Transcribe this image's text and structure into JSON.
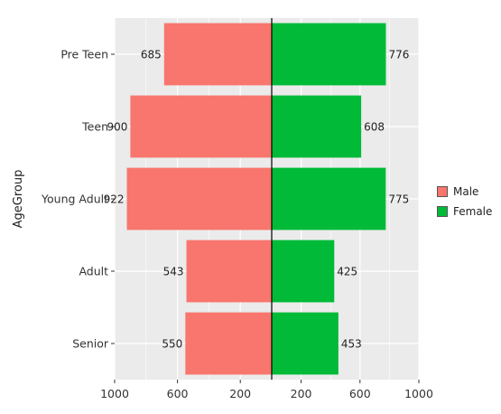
{
  "chart_data": {
    "type": "bar",
    "orientation": "horizontal-diverging",
    "ylabel": "AgeGroup",
    "xlabel": "",
    "categories": [
      "Pre Teen",
      "Teen",
      "Young Adult",
      "Adult",
      "Senior"
    ],
    "series": [
      {
        "name": "Male",
        "values": [
          685,
          900,
          922,
          543,
          550
        ],
        "color": "#F8766D",
        "side": "left"
      },
      {
        "name": "Female",
        "values": [
          776,
          608,
          775,
          425,
          453
        ],
        "color": "#00BA38",
        "side": "right"
      }
    ],
    "xlim": [
      -1000,
      1000
    ],
    "x_ticks": [
      -1000,
      -600,
      -200,
      200,
      600,
      1000
    ],
    "x_tick_labels": [
      "1000",
      "600",
      "200",
      "200",
      "600",
      "1000"
    ],
    "grid": true,
    "legend_position": "right",
    "panel_background": "#EBEBEB",
    "grid_color": "#FFFFFF",
    "center_line_color": "#000000"
  }
}
